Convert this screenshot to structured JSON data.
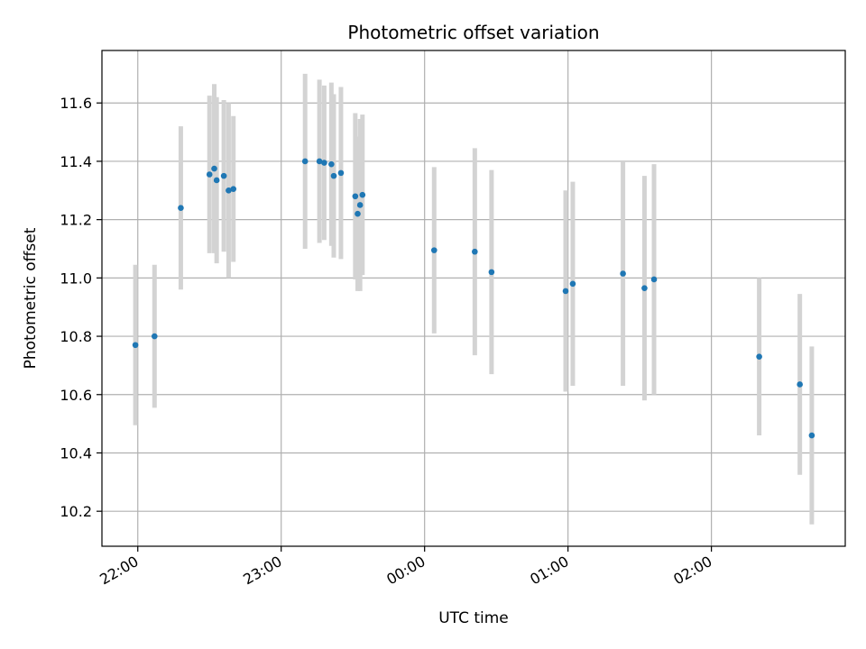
{
  "chart_data": {
    "type": "scatter",
    "title": "Photometric offset variation",
    "xlabel": "UTC time",
    "ylabel": "Photometric offset",
    "x_unit": "UTC time (hh:mm)",
    "xlim": [
      "21:45",
      "2:56"
    ],
    "ylim": [
      10.08,
      11.78
    ],
    "x_ticks": [
      "22:00",
      "23:00",
      "00:00",
      "01:00",
      "02:00"
    ],
    "y_ticks": [
      "10.2",
      "10.4",
      "10.6",
      "10.8",
      "11.0",
      "11.2",
      "11.4",
      "11.6"
    ],
    "grid": true,
    "marker_color": "#1f77b4",
    "errorbar_color": "#d3d3d3",
    "points": [
      {
        "t": "21:59",
        "y": 10.77,
        "err": 0.275
      },
      {
        "t": "22:07",
        "y": 10.8,
        "err": 0.245
      },
      {
        "t": "22:18",
        "y": 11.24,
        "err": 0.28
      },
      {
        "t": "22:30",
        "y": 11.355,
        "err": 0.27
      },
      {
        "t": "22:32",
        "y": 11.375,
        "err": 0.29
      },
      {
        "t": "22:33",
        "y": 11.335,
        "err": 0.285
      },
      {
        "t": "22:36",
        "y": 11.35,
        "err": 0.26
      },
      {
        "t": "22:38",
        "y": 11.3,
        "err": 0.3
      },
      {
        "t": "22:40",
        "y": 11.305,
        "err": 0.25
      },
      {
        "t": "23:10",
        "y": 11.4,
        "err": 0.3
      },
      {
        "t": "23:16",
        "y": 11.4,
        "err": 0.28
      },
      {
        "t": "23:18",
        "y": 11.395,
        "err": 0.265
      },
      {
        "t": "23:21",
        "y": 11.39,
        "err": 0.28
      },
      {
        "t": "23:22",
        "y": 11.35,
        "err": 0.28
      },
      {
        "t": "23:25",
        "y": 11.36,
        "err": 0.295
      },
      {
        "t": "23:31",
        "y": 11.28,
        "err": 0.285
      },
      {
        "t": "23:32",
        "y": 11.22,
        "err": 0.265
      },
      {
        "t": "23:33",
        "y": 11.25,
        "err": 0.295
      },
      {
        "t": "23:34",
        "y": 11.285,
        "err": 0.275
      },
      {
        "t": "0:04",
        "y": 11.095,
        "err": 0.285
      },
      {
        "t": "0:21",
        "y": 11.09,
        "err": 0.355
      },
      {
        "t": "0:28",
        "y": 11.02,
        "err": 0.35
      },
      {
        "t": "0:59",
        "y": 10.955,
        "err": 0.345
      },
      {
        "t": "1:02",
        "y": 10.98,
        "err": 0.35
      },
      {
        "t": "1:23",
        "y": 11.015,
        "err": 0.385
      },
      {
        "t": "1:32",
        "y": 10.965,
        "err": 0.385
      },
      {
        "t": "1:36",
        "y": 10.995,
        "err": 0.395
      },
      {
        "t": "2:20",
        "y": 10.73,
        "err": 0.27
      },
      {
        "t": "2:37",
        "y": 10.635,
        "err": 0.31
      },
      {
        "t": "2:42",
        "y": 10.46,
        "err": 0.305
      }
    ]
  }
}
